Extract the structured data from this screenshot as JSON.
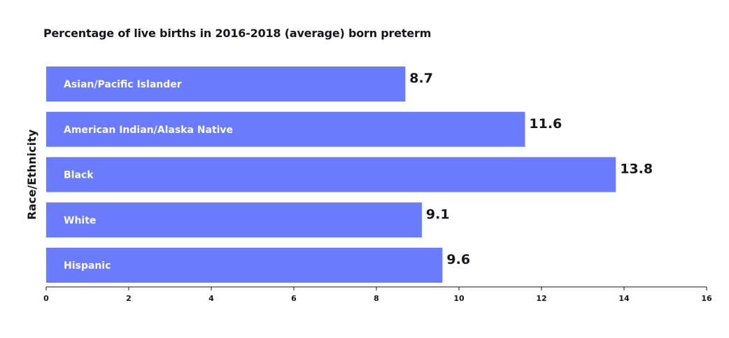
{
  "chart_data": {
    "type": "bar",
    "orientation": "horizontal",
    "title": "Percentage of live births in 2016-2018 (average) born preterm",
    "xlabel": "",
    "ylabel": "Race/Ethnicity",
    "categories": [
      "Asian/Pacific Islander",
      "American Indian/Alaska Native",
      "Black",
      "White",
      "Hispanic"
    ],
    "values": [
      8.7,
      11.6,
      13.8,
      9.1,
      9.6
    ],
    "value_labels": [
      "8.7",
      "11.6",
      "13.8",
      "9.1",
      "9.6"
    ],
    "xlim": [
      0,
      16
    ],
    "x_ticks": [
      0,
      2,
      4,
      6,
      8,
      10,
      12,
      14,
      16
    ],
    "bar_color": "#6a7bfd",
    "grid": false,
    "legend": "none"
  }
}
